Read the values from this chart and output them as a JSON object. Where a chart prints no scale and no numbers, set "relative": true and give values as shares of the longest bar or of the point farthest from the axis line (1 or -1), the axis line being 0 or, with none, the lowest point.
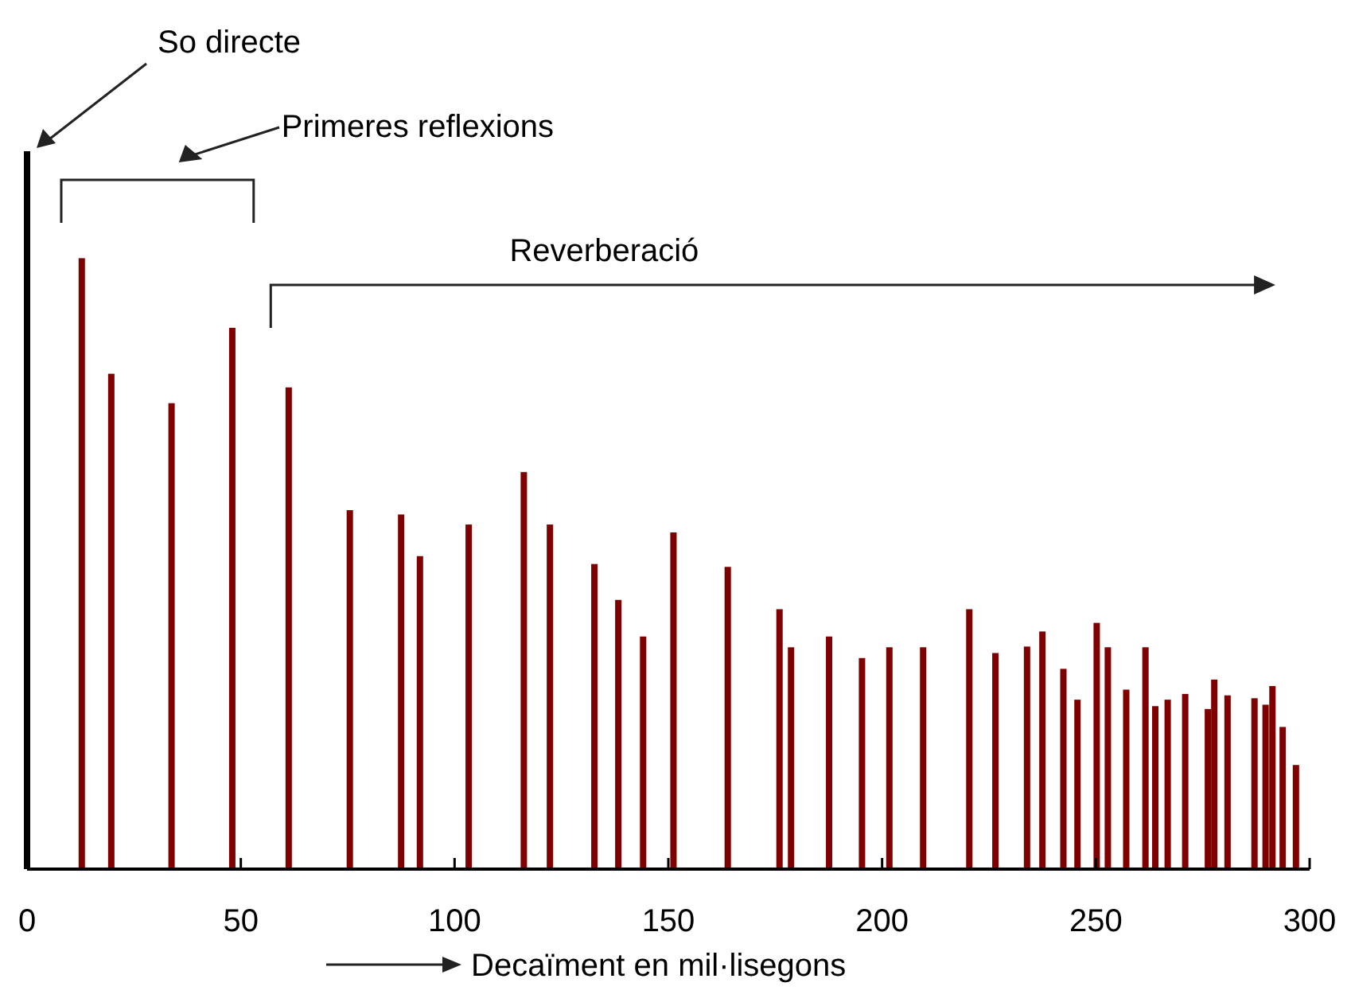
{
  "chart_data": {
    "type": "bar",
    "relative": true,
    "xlabel": "Decaïment en mil·lisegons",
    "x": [
      0,
      12.8,
      19.7,
      33.8,
      48,
      61.2,
      75.5,
      87.5,
      91.9,
      103.3,
      116.2,
      122.3,
      132.7,
      138.3,
      144.1,
      151.2,
      163.9,
      176,
      178.7,
      187.6,
      195.3,
      201.7,
      209.6,
      220.4,
      226.5,
      233.9,
      237.5,
      242.4,
      245.7,
      250.2,
      252.8,
      257.1,
      261.6,
      263.9,
      266.8,
      270.9,
      276.2,
      277.7,
      280.8,
      287.1,
      289.7,
      291.3,
      293.7,
      296.8
    ],
    "values": [
      1,
      0.851,
      0.69,
      0.649,
      0.754,
      0.671,
      0.5,
      0.494,
      0.436,
      0.48,
      0.553,
      0.48,
      0.425,
      0.375,
      0.324,
      0.469,
      0.421,
      0.362,
      0.309,
      0.324,
      0.294,
      0.309,
      0.309,
      0.362,
      0.301,
      0.31,
      0.331,
      0.279,
      0.236,
      0.343,
      0.309,
      0.25,
      0.309,
      0.227,
      0.236,
      0.244,
      0.223,
      0.264,
      0.242,
      0.238,
      0.229,
      0.255,
      0.198,
      0.145
    ],
    "colors": [
      "#000000",
      "#800000",
      "#800000",
      "#800000",
      "#800000",
      "#800000",
      "#800000",
      "#800000",
      "#800000",
      "#800000",
      "#800000",
      "#800000",
      "#800000",
      "#800000",
      "#800000",
      "#800000",
      "#800000",
      "#800000",
      "#800000",
      "#800000",
      "#800000",
      "#800000",
      "#800000",
      "#800000",
      "#800000",
      "#800000",
      "#800000",
      "#800000",
      "#800000",
      "#800000",
      "#800000",
      "#800000",
      "#800000",
      "#800000",
      "#800000",
      "#800000",
      "#800000",
      "#800000",
      "#800000",
      "#800000",
      "#800000",
      "#800000",
      "#800000",
      "#800000"
    ],
    "xlim": [
      0,
      300
    ],
    "xticks": [
      0,
      50,
      100,
      150,
      200,
      250,
      300
    ],
    "annotations": [
      "So directe",
      "Primeres reflexions",
      "Reverberació"
    ]
  }
}
